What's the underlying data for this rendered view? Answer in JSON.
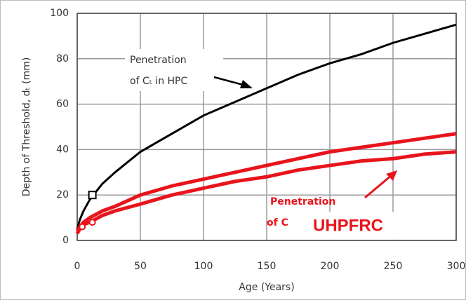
{
  "chart_data": {
    "type": "line",
    "xlabel": "Age (Years)",
    "ylabel": "Depth of Threshold, dₜ (mm)",
    "x": [
      0,
      2,
      5,
      10,
      20,
      30,
      50,
      75,
      100,
      125,
      150,
      175,
      200,
      225,
      250,
      275,
      300
    ],
    "series": [
      {
        "color": "#000000",
        "values": [
          5,
          9,
          13,
          18,
          25,
          30,
          39,
          47,
          55,
          61,
          67,
          73,
          78,
          82,
          87,
          91,
          95
        ]
      },
      {
        "color": "#e8141c",
        "values": [
          4,
          6,
          8,
          10,
          13,
          15,
          20,
          24,
          27,
          30,
          33,
          36,
          39,
          41,
          43,
          45,
          47
        ]
      },
      {
        "color": "#e8141c",
        "values": [
          3,
          5,
          7,
          8,
          11,
          13,
          16,
          20,
          23,
          26,
          28,
          31,
          33,
          35,
          36,
          38,
          39
        ]
      }
    ],
    "points": [
      {
        "x": 12,
        "y": 20,
        "color": "#000000",
        "shape": "square"
      },
      {
        "x": 4,
        "y": 6,
        "color": "#e8141c",
        "shape": "circle"
      },
      {
        "x": 12,
        "y": 8,
        "color": "#e8141c",
        "shape": "circle"
      }
    ],
    "annotations": [
      "Penetration",
      "of Cₜ in HPC",
      "Penetration",
      "of C",
      "UHPFRC"
    ],
    "xlim": [
      0,
      300
    ],
    "xticks": [
      0,
      50,
      100,
      150,
      200,
      250,
      300
    ],
    "ylim": [
      0,
      100
    ],
    "yticks": [
      0,
      20,
      40,
      60,
      80,
      100
    ],
    "grid": true
  }
}
